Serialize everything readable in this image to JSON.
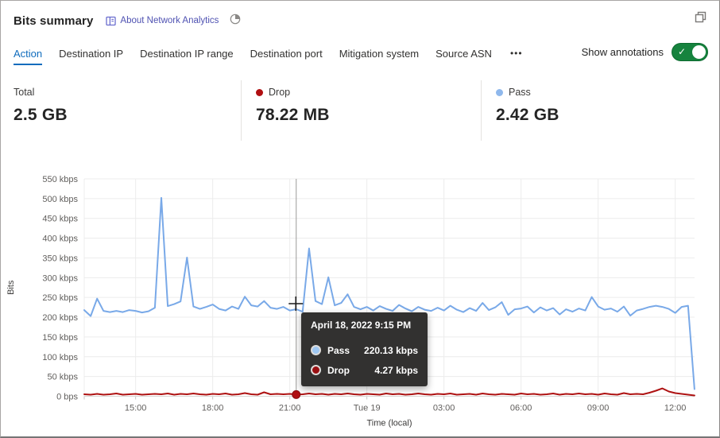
{
  "header": {
    "title": "Bits summary",
    "about_link": "About Network Analytics"
  },
  "icons": {
    "more_glyph": "•••",
    "check_glyph": "✓"
  },
  "tabs": {
    "items": [
      {
        "label": "Action",
        "active": true
      },
      {
        "label": "Destination IP",
        "active": false
      },
      {
        "label": "Destination IP range",
        "active": false
      },
      {
        "label": "Destination port",
        "active": false
      },
      {
        "label": "Mitigation system",
        "active": false
      },
      {
        "label": "Source ASN",
        "active": false
      }
    ]
  },
  "annotations_toggle": {
    "label": "Show annotations",
    "state": "on"
  },
  "stats": {
    "items": [
      {
        "label": "Total",
        "value": "2.5 GB",
        "color": ""
      },
      {
        "label": "Drop",
        "value": "78.22 MB",
        "color": "#b00f11"
      },
      {
        "label": "Pass",
        "value": "2.42 GB",
        "color": "#8fb8ec"
      }
    ]
  },
  "chart_data": {
    "type": "line",
    "ylabel": "Bits",
    "xlabel": "Time (local)",
    "ylim_kbps": [
      0,
      550
    ],
    "grid": true,
    "start_time": "April 18, 2022 1:00 PM",
    "interval_minutes": 15,
    "yticks": [
      "0 bps",
      "50 kbps",
      "100 kbps",
      "150 kbps",
      "200 kbps",
      "250 kbps",
      "300 kbps",
      "350 kbps",
      "400 kbps",
      "450 kbps",
      "500 kbps",
      "550 kbps"
    ],
    "xticks": [
      {
        "hours": 2,
        "label": "15:00"
      },
      {
        "hours": 5,
        "label": "18:00"
      },
      {
        "hours": 8,
        "label": "21:00"
      },
      {
        "hours": 11,
        "label": "Tue 19"
      },
      {
        "hours": 14,
        "label": "03:00"
      },
      {
        "hours": 17,
        "label": "06:00"
      },
      {
        "hours": 20,
        "label": "09:00"
      },
      {
        "hours": 23,
        "label": "12:00"
      }
    ],
    "series": [
      {
        "name": "Pass",
        "color": "#79a9e8",
        "unit": "kbps",
        "values": [
          218,
          203,
          247,
          216,
          213,
          216,
          213,
          218,
          216,
          212,
          215,
          224,
          502,
          228,
          233,
          240,
          351,
          227,
          221,
          226,
          232,
          221,
          217,
          227,
          221,
          252,
          230,
          227,
          241,
          224,
          221,
          226,
          217,
          220.13,
          214,
          374,
          241,
          233,
          301,
          230,
          236,
          258,
          226,
          220,
          226,
          217,
          228,
          221,
          216,
          231,
          222,
          215,
          226,
          219,
          216,
          224,
          217,
          229,
          219,
          213,
          223,
          216,
          236,
          218,
          225,
          238,
          206,
          220,
          222,
          227,
          212,
          225,
          217,
          223,
          207,
          220,
          214,
          222,
          217,
          251,
          227,
          219,
          222,
          214,
          227,
          204,
          217,
          221,
          226,
          229,
          226,
          221,
          211,
          226,
          229,
          18
        ]
      },
      {
        "name": "Drop",
        "color": "#ae1212",
        "unit": "kbps",
        "values": [
          5,
          4,
          6,
          4,
          5,
          7,
          4,
          5,
          6,
          4,
          5,
          6,
          5,
          7,
          4,
          6,
          5,
          7,
          5,
          4,
          6,
          5,
          7,
          4,
          5,
          8,
          5,
          4,
          10,
          5,
          6,
          5,
          6,
          4.27,
          5,
          7,
          5,
          6,
          4,
          6,
          5,
          7,
          5,
          4,
          6,
          5,
          4,
          7,
          5,
          6,
          4,
          5,
          7,
          5,
          4,
          6,
          5,
          7,
          4,
          5,
          6,
          4,
          7,
          5,
          4,
          6,
          5,
          4,
          7,
          5,
          6,
          4,
          5,
          7,
          4,
          6,
          5,
          7,
          5,
          6,
          4,
          7,
          5,
          4,
          8,
          5,
          6,
          5,
          9,
          14,
          20,
          12,
          8,
          6,
          4,
          2
        ]
      }
    ],
    "hover": {
      "time_label": "April 18, 2022 9:15 PM",
      "hours_from_start": 8.25,
      "rows": [
        {
          "label": "Pass",
          "value": "220.13 kbps",
          "color": "#9ec7f2"
        },
        {
          "label": "Drop",
          "value": "4.27 kbps",
          "color": "#990f12"
        }
      ]
    }
  }
}
